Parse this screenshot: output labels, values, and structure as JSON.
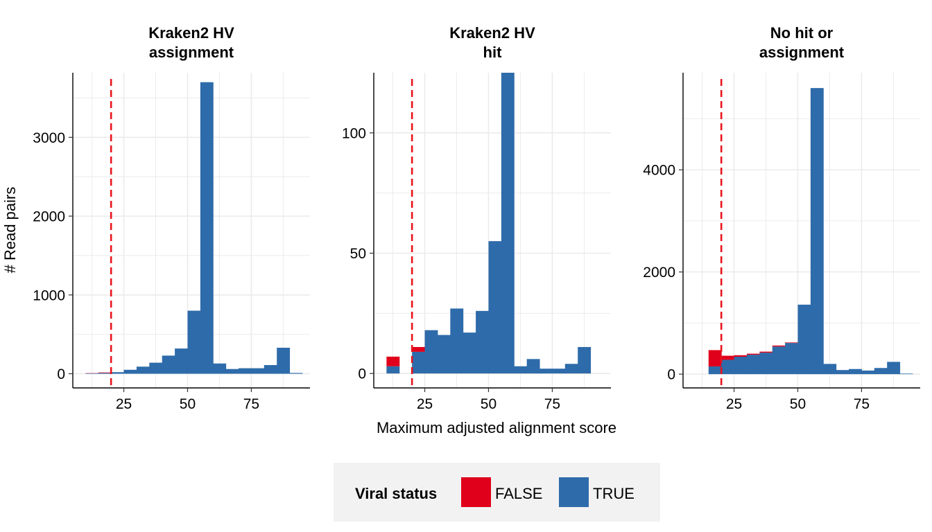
{
  "colors": {
    "false_fill": "#E0001B",
    "true_fill": "#2E6BAA",
    "threshold_line": "#E8141B",
    "grid": "#EBEBEB",
    "legend_bg": "#F2F2F2"
  },
  "chart_data": {
    "type": "bar",
    "subtype": "stacked histogram, faceted",
    "xlabel": "Maximum adjusted alignment score",
    "ylabel": "# Read pairs",
    "threshold_x": 20,
    "bin_width": 5,
    "xlim": [
      5,
      98
    ],
    "x_ticks": [
      25,
      50,
      75
    ],
    "legend": {
      "title": "Viral status",
      "position": "bottom",
      "entries": [
        "FALSE",
        "TRUE"
      ]
    },
    "panels": [
      {
        "title": [
          "Kraken2 HV",
          "assignment"
        ],
        "ylim": [
          -180,
          3820
        ],
        "y_ticks": [
          0,
          1000,
          2000,
          3000
        ],
        "bin_centers": [
          12.5,
          17.5,
          22.5,
          27.5,
          32.5,
          37.5,
          42.5,
          47.5,
          52.5,
          57.5,
          62.5,
          67.5,
          72.5,
          77.5,
          82.5,
          87.5,
          92.5
        ],
        "series": [
          {
            "name": "FALSE",
            "values": [
              3,
              6,
              0,
              0,
              0,
              0,
              0,
              0,
              0,
              0,
              0,
              0,
              0,
              0,
              0,
              0,
              0
            ]
          },
          {
            "name": "TRUE",
            "values": [
              5,
              10,
              20,
              50,
              90,
              140,
              230,
              320,
              800,
              3700,
              130,
              60,
              70,
              70,
              110,
              330,
              10
            ]
          }
        ]
      },
      {
        "title": [
          "Kraken2 HV",
          "hit"
        ],
        "ylim": [
          -6,
          125
        ],
        "y_ticks": [
          0,
          50,
          100
        ],
        "bin_centers": [
          12.5,
          17.5,
          22.5,
          27.5,
          32.5,
          37.5,
          42.5,
          47.5,
          52.5,
          57.5,
          62.5,
          67.5,
          72.5,
          77.5,
          82.5,
          87.5
        ],
        "series": [
          {
            "name": "FALSE",
            "values": [
              4,
              0,
              2,
              0,
              0,
              0,
              0,
              0,
              0,
              0,
              0,
              0,
              0,
              0,
              0,
              0
            ]
          },
          {
            "name": "TRUE",
            "values": [
              3,
              0,
              9,
              18,
              16,
              27,
              17,
              26,
              55,
              125,
              3,
              6,
              2,
              2,
              4,
              11
            ]
          }
        ]
      },
      {
        "title": [
          "No hit or",
          "assignment"
        ],
        "ylim": [
          -270,
          5900
        ],
        "y_ticks": [
          0,
          2000,
          4000
        ],
        "bin_centers": [
          17.5,
          22.5,
          27.5,
          32.5,
          37.5,
          42.5,
          47.5,
          52.5,
          57.5,
          62.5,
          67.5,
          72.5,
          77.5,
          82.5,
          87.5,
          92.5
        ],
        "series": [
          {
            "name": "FALSE",
            "values": [
              320,
              80,
              30,
              20,
              20,
              20,
              10,
              0,
              0,
              0,
              0,
              0,
              0,
              0,
              0,
              0
            ]
          },
          {
            "name": "TRUE",
            "values": [
              150,
              280,
              340,
              380,
              420,
              540,
              610,
              1360,
              5600,
              200,
              80,
              100,
              70,
              120,
              240,
              10
            ]
          }
        ]
      }
    ]
  }
}
